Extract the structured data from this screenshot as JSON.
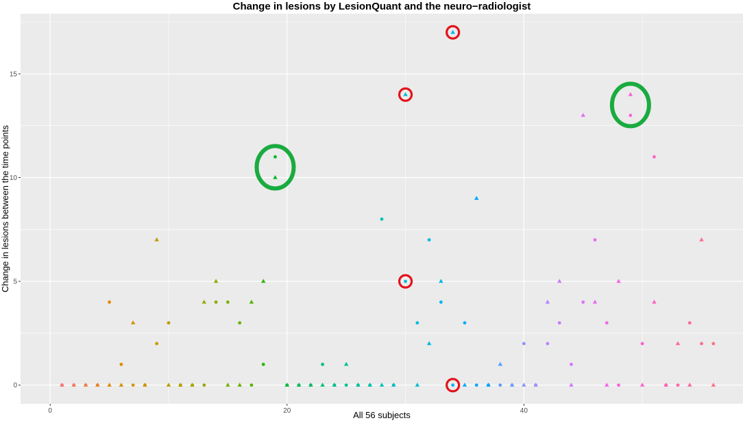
{
  "chart_data": {
    "type": "scatter",
    "title": "Change in lesions by LesionQuant and the neuro−radiologist",
    "xlabel": "All 56 subjects",
    "ylabel": "Change in lesions between the time points",
    "xlim": [
      -2.5,
      58.5
    ],
    "ylim": [
      -0.9,
      17.9
    ],
    "x_ticks": [
      0,
      20,
      40
    ],
    "y_ticks": [
      0,
      5,
      10,
      15
    ],
    "grid": true,
    "legend": "none",
    "colors": {
      "panel_background": "#ebebeb",
      "grid_line": "#ffffff",
      "highlight_red": "#e3121b",
      "highlight_green": "#1aab40",
      "hue_start": 15,
      "hue_end": 375
    },
    "series": [
      {
        "marker": "triangle",
        "values": [
          0,
          0,
          0,
          0,
          0,
          0,
          3,
          0,
          7,
          0,
          0,
          0,
          4,
          5,
          0,
          0,
          4,
          5,
          10,
          0,
          0,
          0,
          0,
          0,
          1,
          0,
          0,
          0,
          0,
          14,
          0,
          2,
          5,
          17,
          0,
          9,
          0,
          1,
          0,
          0,
          0,
          4,
          5,
          0,
          13,
          4,
          0,
          5,
          14,
          0,
          4,
          0,
          2,
          0,
          7,
          0
        ]
      },
      {
        "marker": "circle",
        "values": [
          0,
          0,
          0,
          0,
          4,
          1,
          0,
          0,
          2,
          3,
          0,
          0,
          0,
          4,
          4,
          3,
          0,
          1,
          11,
          0,
          0,
          0,
          1,
          0,
          0,
          0,
          0,
          8,
          0,
          5,
          3,
          7,
          4,
          0,
          3,
          0,
          0,
          0,
          0,
          2,
          0,
          2,
          3,
          1,
          4,
          7,
          3,
          0,
          13,
          2,
          11,
          0,
          0,
          3,
          2,
          2
        ]
      }
    ],
    "annotations": [
      {
        "shape": "circle",
        "color": "red",
        "x": 30,
        "y": 14
      },
      {
        "shape": "circle",
        "color": "red",
        "x": 34,
        "y": 17
      },
      {
        "shape": "circle",
        "color": "red",
        "x": 30,
        "y": 5
      },
      {
        "shape": "circle",
        "color": "red",
        "x": 34,
        "y": 0
      },
      {
        "shape": "ellipse",
        "color": "green",
        "x": 19,
        "y": 10.5
      },
      {
        "shape": "ellipse",
        "color": "green",
        "x": 49,
        "y": 13.5
      }
    ]
  }
}
